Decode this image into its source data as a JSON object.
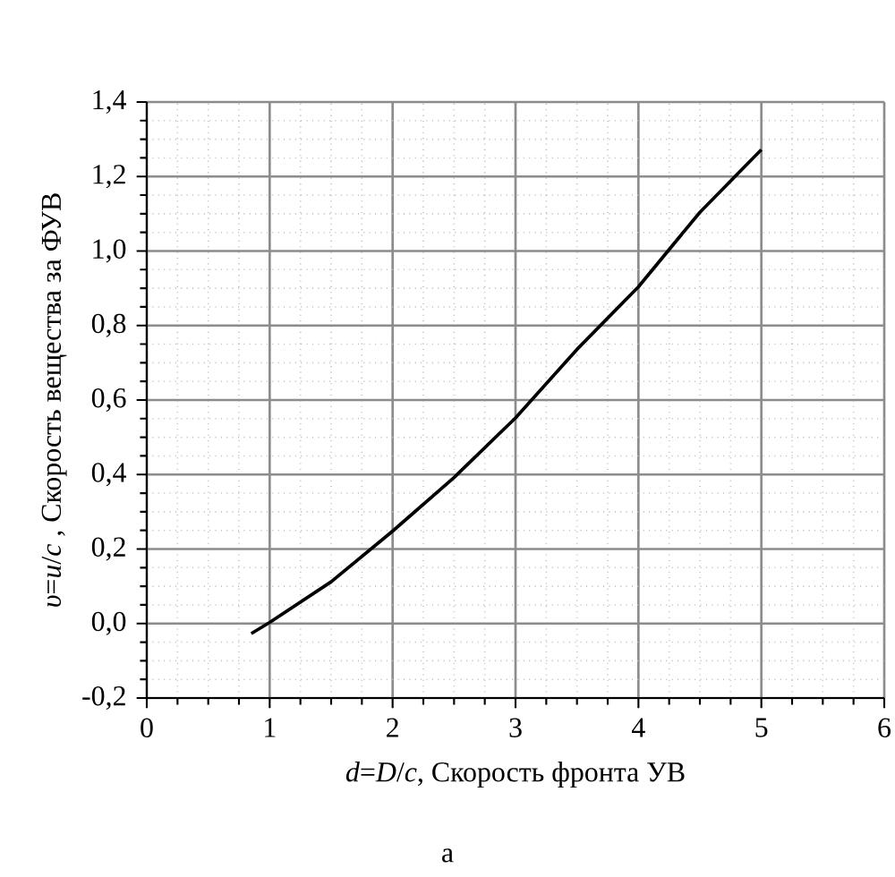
{
  "chart_data": {
    "type": "line",
    "xlabel": "*d*=*D*/*c*, Скорость фронта УВ",
    "ylabel": "*υ*=*u*/*c* , Скорость вещества за ФУВ",
    "annotations": [
      "а"
    ],
    "x": [
      0.85,
      1.0,
      1.5,
      2.0,
      2.5,
      3.0,
      3.5,
      4.0,
      4.5,
      5.0
    ],
    "series": [
      {
        "color": "#000000",
        "values": [
          -0.027,
          0.003,
          0.112,
          0.248,
          0.392,
          0.552,
          0.736,
          0.904,
          1.104,
          1.272
        ]
      }
    ],
    "xlim": [
      0,
      6
    ],
    "xticks": [
      0,
      1,
      2,
      3,
      4,
      5,
      6
    ],
    "ylim": [
      -0.2,
      1.4
    ],
    "yticks": [
      {
        "value": -0.2,
        "label": "-0,2"
      },
      {
        "value": 0,
        "label": "0,0"
      },
      {
        "value": 0.2,
        "label": "0,2"
      },
      {
        "value": 0.4,
        "label": "0,4"
      },
      {
        "value": 0.6,
        "label": "0,6"
      },
      {
        "value": 0.8,
        "label": "0,8"
      },
      {
        "value": 1.0,
        "label": "1,0"
      },
      {
        "value": 1.2,
        "label": "1,2"
      },
      {
        "value": 1.4,
        "label": "1,4"
      }
    ],
    "grid": true,
    "marker": "none",
    "line_style": "solid"
  }
}
